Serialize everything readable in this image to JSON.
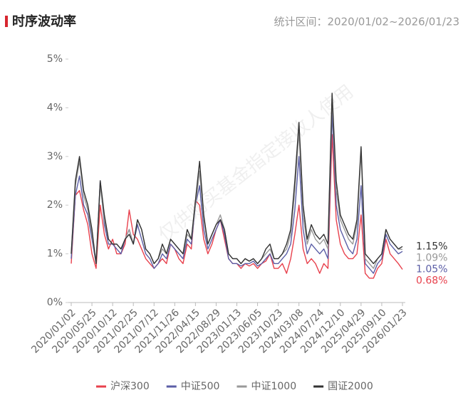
{
  "chart_data": {
    "type": "line",
    "title": "时序波动率",
    "subtitle": "统计区间：2020/01/02~2026/01/23",
    "watermark": "仅供购买基金指定接收人使用",
    "categories": [
      "2020/01/02",
      null,
      null,
      null,
      null,
      "2020/05/25",
      null,
      null,
      null,
      null,
      "2020/10/12",
      null,
      null,
      null,
      null,
      "2021/02/25",
      null,
      null,
      null,
      null,
      "2021/07/12",
      null,
      null,
      null,
      null,
      "2021/11/26",
      null,
      null,
      null,
      null,
      "2022/04/15",
      null,
      null,
      null,
      null,
      "2022/08/29",
      null,
      null,
      null,
      null,
      "2023/01/13",
      null,
      null,
      null,
      null,
      "2023/06/05",
      null,
      null,
      null,
      null,
      "2023/10/23",
      null,
      null,
      null,
      null,
      "2024/03/08",
      null,
      null,
      null,
      null,
      "2024/07/24",
      null,
      null,
      null,
      null,
      "2024/12/10",
      null,
      null,
      null,
      null,
      "2025/04/29",
      null,
      null,
      null,
      null,
      "2025/09/10",
      null,
      null,
      null,
      null,
      "2026/01/23"
    ],
    "ylim": [
      0,
      5
    ],
    "yticks": [
      {
        "value": 0,
        "label": "0%"
      },
      {
        "value": 1,
        "label": "1%"
      },
      {
        "value": 2,
        "label": "2%"
      },
      {
        "value": 3,
        "label": "3%"
      },
      {
        "value": 4,
        "label": "4%"
      },
      {
        "value": 5,
        "label": "5%"
      }
    ],
    "grid": false,
    "legend": "bottom",
    "series": [
      {
        "name": "沪深300",
        "color": "#e8414d",
        "values": [
          0.8,
          2.2,
          2.3,
          1.9,
          1.6,
          1.0,
          0.7,
          2.0,
          1.4,
          1.1,
          1.3,
          1.0,
          1.0,
          1.2,
          1.9,
          1.4,
          1.3,
          1.1,
          0.9,
          0.8,
          0.7,
          0.8,
          0.9,
          0.8,
          1.2,
          1.1,
          0.9,
          0.8,
          1.2,
          1.1,
          2.1,
          2.0,
          1.3,
          1.0,
          1.2,
          1.5,
          1.7,
          1.3,
          0.9,
          0.8,
          0.8,
          0.7,
          0.8,
          0.75,
          0.8,
          0.7,
          0.8,
          0.85,
          1.0,
          0.7,
          0.7,
          0.8,
          0.6,
          0.9,
          1.4,
          2.0,
          1.1,
          0.8,
          0.9,
          0.8,
          0.6,
          0.8,
          0.7,
          3.45,
          1.7,
          1.2,
          1.0,
          0.9,
          0.9,
          1.0,
          1.8,
          0.6,
          0.5,
          0.5,
          0.7,
          0.8,
          1.3,
          1.0,
          0.9,
          0.8,
          0.68
        ],
        "value_labels": [
          null,
          null,
          null,
          null,
          null,
          null,
          null,
          null,
          null,
          null,
          null,
          null,
          null,
          null,
          null,
          null,
          null,
          null,
          null,
          null,
          null,
          null,
          null,
          null,
          null,
          null,
          null,
          null,
          null,
          null,
          null,
          null,
          null,
          null,
          null,
          null,
          null,
          null,
          null,
          null,
          null,
          null,
          null,
          null,
          null,
          null,
          null,
          null,
          null,
          null,
          null,
          null,
          null,
          null,
          null,
          null,
          null,
          null,
          null,
          null,
          null,
          null,
          null,
          null,
          null,
          null,
          null,
          null,
          null,
          null,
          null,
          null,
          null,
          null,
          null,
          null,
          null,
          null,
          null,
          null,
          "0.68%"
        ]
      },
      {
        "name": "中证500",
        "color": "#5b5ea6",
        "values": [
          0.9,
          2.2,
          2.6,
          2.0,
          1.8,
          1.3,
          0.8,
          2.5,
          1.6,
          1.2,
          1.2,
          1.1,
          1.0,
          1.3,
          1.5,
          1.2,
          1.6,
          1.3,
          1.0,
          0.9,
          0.7,
          0.8,
          1.0,
          0.9,
          1.2,
          1.1,
          1.0,
          0.9,
          1.3,
          1.2,
          2.0,
          2.4,
          1.5,
          1.1,
          1.3,
          1.5,
          1.7,
          1.4,
          0.9,
          0.8,
          0.8,
          0.75,
          0.8,
          0.8,
          0.85,
          0.75,
          0.8,
          0.9,
          1.0,
          0.8,
          0.8,
          0.9,
          1.0,
          1.2,
          1.9,
          3.0,
          1.5,
          1.0,
          1.2,
          1.1,
          1.0,
          1.1,
          0.9,
          3.9,
          2.0,
          1.5,
          1.3,
          1.1,
          1.0,
          1.3,
          2.4,
          0.8,
          0.7,
          0.6,
          0.8,
          0.9,
          1.4,
          1.2,
          1.1,
          1.0,
          1.05
        ],
        "value_labels": [
          null,
          null,
          null,
          null,
          null,
          null,
          null,
          null,
          null,
          null,
          null,
          null,
          null,
          null,
          null,
          null,
          null,
          null,
          null,
          null,
          null,
          null,
          null,
          null,
          null,
          null,
          null,
          null,
          null,
          null,
          null,
          null,
          null,
          null,
          null,
          null,
          null,
          null,
          null,
          null,
          null,
          null,
          null,
          null,
          null,
          null,
          null,
          null,
          null,
          null,
          null,
          null,
          null,
          null,
          null,
          null,
          null,
          null,
          null,
          null,
          null,
          null,
          null,
          null,
          null,
          null,
          null,
          null,
          null,
          null,
          null,
          null,
          null,
          null,
          null,
          null,
          null,
          null,
          null,
          null,
          "1.05%"
        ]
      },
      {
        "name": "中证1000",
        "color": "#999999",
        "values": [
          1.0,
          2.4,
          2.9,
          2.2,
          1.9,
          1.4,
          0.8,
          2.4,
          1.7,
          1.3,
          1.2,
          1.2,
          1.1,
          1.3,
          1.5,
          1.2,
          1.7,
          1.5,
          1.1,
          1.0,
          0.8,
          0.9,
          1.1,
          1.0,
          1.3,
          1.2,
          1.1,
          1.0,
          1.4,
          1.3,
          2.0,
          2.7,
          1.7,
          1.2,
          1.4,
          1.6,
          1.8,
          1.5,
          1.0,
          0.9,
          0.9,
          0.8,
          0.9,
          0.85,
          0.9,
          0.8,
          0.9,
          1.0,
          1.1,
          0.9,
          0.9,
          1.0,
          1.1,
          1.4,
          2.3,
          3.5,
          1.8,
          1.2,
          1.5,
          1.3,
          1.2,
          1.3,
          1.1,
          4.2,
          2.3,
          1.7,
          1.5,
          1.3,
          1.2,
          1.6,
          3.1,
          0.9,
          0.8,
          0.7,
          0.9,
          1.0,
          1.5,
          1.3,
          1.2,
          1.1,
          1.09
        ],
        "value_labels": [
          null,
          null,
          null,
          null,
          null,
          null,
          null,
          null,
          null,
          null,
          null,
          null,
          null,
          null,
          null,
          null,
          null,
          null,
          null,
          null,
          null,
          null,
          null,
          null,
          null,
          null,
          null,
          null,
          null,
          null,
          null,
          null,
          null,
          null,
          null,
          null,
          null,
          null,
          null,
          null,
          null,
          null,
          null,
          null,
          null,
          null,
          null,
          null,
          null,
          null,
          null,
          null,
          null,
          null,
          null,
          null,
          null,
          null,
          null,
          null,
          null,
          null,
          null,
          null,
          null,
          null,
          null,
          null,
          null,
          null,
          null,
          null,
          null,
          null,
          null,
          null,
          null,
          null,
          null,
          null,
          "1.09%"
        ]
      },
      {
        "name": "国证2000",
        "color": "#333333",
        "values": [
          1.0,
          2.5,
          3.0,
          2.3,
          2.0,
          1.5,
          0.8,
          2.5,
          1.8,
          1.3,
          1.2,
          1.2,
          1.1,
          1.3,
          1.4,
          1.2,
          1.7,
          1.5,
          1.1,
          1.0,
          0.8,
          0.9,
          1.2,
          1.0,
          1.3,
          1.2,
          1.1,
          1.0,
          1.5,
          1.3,
          2.1,
          2.9,
          1.8,
          1.2,
          1.4,
          1.6,
          1.7,
          1.5,
          1.0,
          0.9,
          0.9,
          0.8,
          0.9,
          0.85,
          0.9,
          0.8,
          0.9,
          1.1,
          1.2,
          0.9,
          0.9,
          1.0,
          1.2,
          1.5,
          2.5,
          3.7,
          2.0,
          1.3,
          1.6,
          1.4,
          1.3,
          1.4,
          1.2,
          4.3,
          2.5,
          1.8,
          1.6,
          1.4,
          1.3,
          1.7,
          3.2,
          1.0,
          0.9,
          0.8,
          0.9,
          1.0,
          1.5,
          1.3,
          1.2,
          1.1,
          1.15
        ],
        "value_labels": [
          null,
          null,
          null,
          null,
          null,
          null,
          null,
          null,
          null,
          null,
          null,
          null,
          null,
          null,
          null,
          null,
          null,
          null,
          null,
          null,
          null,
          null,
          null,
          null,
          null,
          null,
          null,
          null,
          null,
          null,
          null,
          null,
          null,
          null,
          null,
          null,
          null,
          null,
          null,
          null,
          null,
          null,
          null,
          null,
          null,
          null,
          null,
          null,
          null,
          null,
          null,
          null,
          null,
          null,
          null,
          null,
          null,
          null,
          null,
          null,
          null,
          null,
          null,
          null,
          null,
          null,
          null,
          null,
          null,
          null,
          null,
          null,
          null,
          null,
          null,
          null,
          null,
          null,
          null,
          null,
          "1.15%"
        ]
      }
    ]
  }
}
